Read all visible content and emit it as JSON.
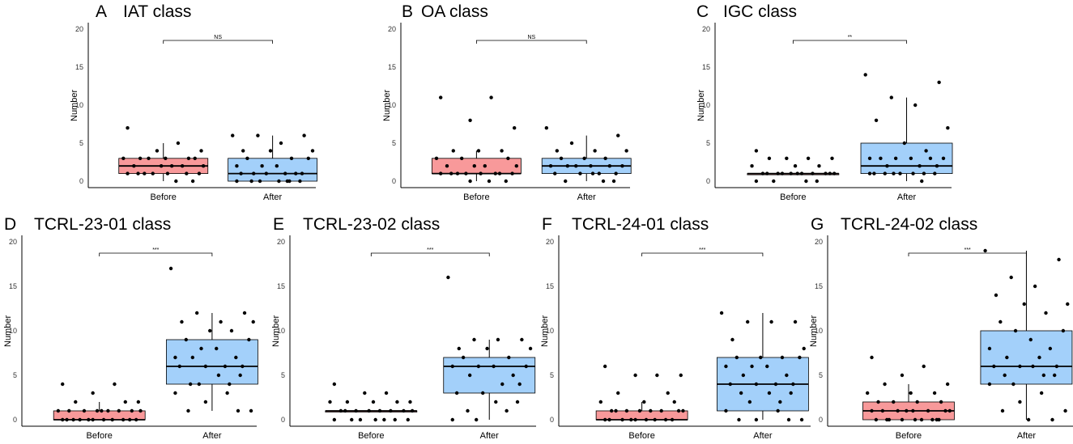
{
  "chart_data": [
    {
      "type": "box",
      "panel": "A",
      "title": "IAT class",
      "ylabel": "Number",
      "ylim": [
        0,
        20
      ],
      "yticks": [
        0,
        5,
        10,
        15,
        20
      ],
      "categories": [
        "Before",
        "After"
      ],
      "significance": "NS",
      "boxes": [
        {
          "group": "Before",
          "q1": 1,
          "median": 2,
          "q3": 3,
          "whisker_low": 0,
          "whisker_high": 5
        },
        {
          "group": "After",
          "q1": 0,
          "median": 1,
          "q3": 3,
          "whisker_low": 0,
          "whisker_high": 6
        }
      ],
      "points": [
        [
          7,
          5,
          4,
          4,
          3,
          3,
          3,
          3,
          3,
          3,
          2,
          2,
          2,
          2,
          2,
          1,
          1,
          1,
          1,
          1,
          1,
          1,
          0,
          0
        ],
        [
          6,
          6,
          6,
          5,
          4,
          4,
          4,
          3,
          3,
          3,
          2,
          2,
          2,
          1,
          1,
          1,
          1,
          1,
          1,
          0,
          0,
          0,
          0,
          0,
          0,
          0
        ]
      ]
    },
    {
      "type": "box",
      "panel": "B",
      "title": "OA class",
      "ylabel": "Number",
      "ylim": [
        0,
        20
      ],
      "yticks": [
        0,
        5,
        10,
        15,
        20
      ],
      "categories": [
        "Before",
        "After"
      ],
      "significance": "NS",
      "boxes": [
        {
          "group": "Before",
          "q1": 1,
          "median": 1,
          "q3": 3,
          "whisker_low": 0,
          "whisker_high": 4
        },
        {
          "group": "After",
          "q1": 1,
          "median": 2,
          "q3": 3,
          "whisker_low": 0,
          "whisker_high": 6
        }
      ],
      "points": [
        [
          11,
          11,
          8,
          7,
          4,
          4,
          4,
          3,
          3,
          3,
          2,
          2,
          2,
          2,
          1,
          1,
          1,
          1,
          1,
          1,
          1,
          1,
          0,
          0,
          0
        ],
        [
          7,
          6,
          5,
          4,
          4,
          4,
          3,
          3,
          3,
          2,
          2,
          2,
          2,
          2,
          2,
          1,
          1,
          1,
          1,
          1,
          0,
          0,
          0
        ]
      ]
    },
    {
      "type": "box",
      "panel": "C",
      "title": "IGC class",
      "ylabel": "Number",
      "ylim": [
        0,
        20
      ],
      "yticks": [
        0,
        5,
        10,
        15,
        20
      ],
      "categories": [
        "Before",
        "After"
      ],
      "significance": "**",
      "boxes": [
        {
          "group": "Before",
          "q1": 1,
          "median": 1,
          "q3": 1,
          "whisker_low": 1,
          "whisker_high": 1
        },
        {
          "group": "After",
          "q1": 1,
          "median": 2,
          "q3": 5,
          "whisker_low": 0,
          "whisker_high": 11
        }
      ],
      "points": [
        [
          4,
          3,
          3,
          3,
          3,
          2,
          2,
          2,
          1,
          1,
          1,
          1,
          1,
          1,
          1,
          1,
          1,
          1,
          1,
          0,
          0,
          0,
          0
        ],
        [
          14,
          13,
          11,
          10,
          8,
          7,
          5,
          4,
          3,
          3,
          3,
          3,
          3,
          3,
          2,
          2,
          2,
          1,
          1,
          1,
          1,
          1,
          1,
          1,
          1,
          0
        ]
      ]
    },
    {
      "type": "box",
      "panel": "D",
      "title": "TCRL-23-01 class",
      "ylabel": "Number",
      "ylim": [
        0,
        20
      ],
      "yticks": [
        0,
        5,
        10,
        15,
        20
      ],
      "categories": [
        "Before",
        "After"
      ],
      "significance": "***",
      "boxes": [
        {
          "group": "Before",
          "q1": 0,
          "median": 0,
          "q3": 1,
          "whisker_low": 0,
          "whisker_high": 2
        },
        {
          "group": "After",
          "q1": 4,
          "median": 6,
          "q3": 9,
          "whisker_low": 1,
          "whisker_high": 12
        }
      ],
      "points": [
        [
          4,
          4,
          3,
          2,
          2,
          2,
          1,
          1,
          1,
          1,
          1,
          1,
          1,
          1,
          1,
          0,
          0,
          0,
          0,
          0,
          0,
          0,
          0,
          0,
          0,
          0
        ],
        [
          17,
          12,
          12,
          11,
          11,
          11,
          10,
          10,
          9,
          9,
          8,
          8,
          7,
          7,
          7,
          6,
          6,
          6,
          6,
          5,
          5,
          4,
          4,
          4,
          3,
          3,
          2,
          1,
          1,
          1
        ]
      ]
    },
    {
      "type": "box",
      "panel": "E",
      "title": "TCRL-23-02 class",
      "ylabel": "Number",
      "ylim": [
        0,
        20
      ],
      "yticks": [
        0,
        5,
        10,
        15,
        20
      ],
      "categories": [
        "Before",
        "After"
      ],
      "significance": "***",
      "boxes": [
        {
          "group": "Before",
          "q1": 1,
          "median": 1,
          "q3": 1,
          "whisker_low": 1,
          "whisker_high": 1
        },
        {
          "group": "After",
          "q1": 3,
          "median": 6,
          "q3": 7,
          "whisker_low": 0,
          "whisker_high": 9
        }
      ],
      "points": [
        [
          4,
          3,
          3,
          2,
          2,
          2,
          2,
          2,
          1,
          1,
          1,
          1,
          1,
          1,
          1,
          1,
          0,
          0,
          0,
          0,
          0,
          0,
          0
        ],
        [
          16,
          9,
          9,
          9,
          8,
          8,
          8,
          7,
          7,
          6,
          6,
          6,
          6,
          5,
          5,
          4,
          4,
          3,
          3,
          2,
          2,
          1,
          1,
          0,
          0
        ]
      ]
    },
    {
      "type": "box",
      "panel": "F",
      "title": "TCRL-24-01 class",
      "ylabel": "Number",
      "ylim": [
        0,
        20
      ],
      "yticks": [
        0,
        5,
        10,
        15,
        20
      ],
      "categories": [
        "Before",
        "After"
      ],
      "significance": "***",
      "boxes": [
        {
          "group": "Before",
          "q1": 0,
          "median": 0,
          "q3": 1,
          "whisker_low": 0,
          "whisker_high": 2
        },
        {
          "group": "After",
          "q1": 1,
          "median": 4,
          "q3": 7,
          "whisker_low": 0,
          "whisker_high": 12
        }
      ],
      "points": [
        [
          6,
          5,
          5,
          5,
          3,
          3,
          2,
          2,
          2,
          1,
          1,
          1,
          1,
          1,
          1,
          1,
          1,
          0,
          0,
          0,
          0,
          0,
          0,
          0,
          0,
          0
        ],
        [
          12,
          11,
          11,
          11,
          9,
          8,
          7,
          7,
          7,
          7,
          6,
          6,
          6,
          5,
          5,
          4,
          4,
          4,
          4,
          3,
          3,
          3,
          2,
          2,
          1,
          1,
          0,
          0,
          0,
          0
        ]
      ]
    },
    {
      "type": "box",
      "panel": "G",
      "title": "TCRL-24-02 class",
      "ylabel": "Number",
      "ylim": [
        0,
        20
      ],
      "yticks": [
        0,
        5,
        10,
        15,
        20
      ],
      "categories": [
        "Before",
        "After"
      ],
      "significance": "***",
      "boxes": [
        {
          "group": "Before",
          "q1": 0,
          "median": 1,
          "q3": 2,
          "whisker_low": 0,
          "whisker_high": 4
        },
        {
          "group": "After",
          "q1": 4,
          "median": 6,
          "q3": 10,
          "whisker_low": 0,
          "whisker_high": 19
        }
      ],
      "points": [
        [
          7,
          6,
          5,
          4,
          4,
          3,
          3,
          3,
          2,
          2,
          2,
          2,
          1,
          1,
          1,
          1,
          1,
          1,
          1,
          1,
          0,
          0,
          0,
          0,
          0,
          0,
          0,
          0,
          0
        ],
        [
          19,
          18,
          16,
          15,
          14,
          13,
          13,
          12,
          11,
          10,
          10,
          9,
          8,
          8,
          7,
          7,
          6,
          6,
          6,
          6,
          5,
          5,
          5,
          4,
          4,
          3,
          2,
          1,
          1,
          0,
          0
        ]
      ]
    }
  ],
  "colors": {
    "before_fill": "#f8999a",
    "after_fill": "#a3d0fa",
    "stroke": "#000000"
  }
}
